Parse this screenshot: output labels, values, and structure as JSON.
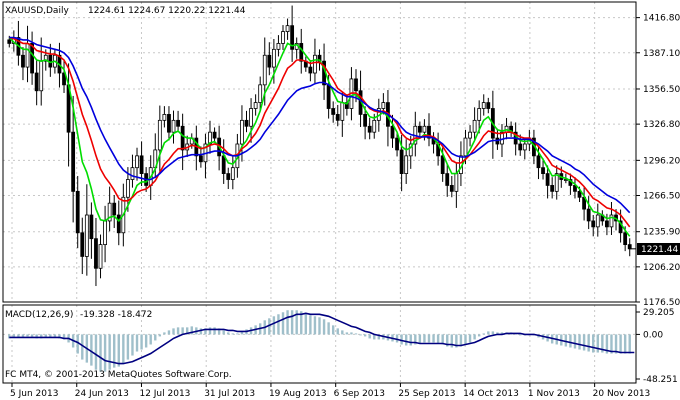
{
  "header": {
    "symbol_label": "XAUUSD,Daily",
    "ohlc": "1224.61 1224.67 1220.22 1221.44"
  },
  "macd_header": {
    "label": "MACD(12,26,9)",
    "values": "-19.328 -18.472"
  },
  "copyright": "FC MT4, © 2001-2013 MetaQuotes Software Corp.",
  "colors": {
    "background": "#ffffff",
    "axis": "#000000",
    "grid": "#c8c8c8",
    "candle": "#000000",
    "ma_fast": "#00dd00",
    "ma_mid": "#ee0000",
    "ma_slow": "#0000dd",
    "macd_hist": "#9fbfca",
    "macd_signal": "#000080",
    "current_price_box": "#000000"
  },
  "chart_data": [
    {
      "type": "candlestick",
      "title": "XAUUSD,Daily",
      "x_tick_labels": [
        "5 Jun 2013",
        "24 Jun 2013",
        "12 Jul 2013",
        "31 Jul 2013",
        "19 Aug 2013",
        "6 Sep 2013",
        "25 Sep 2013",
        "14 Oct 2013",
        "1 Nov 2013",
        "20 Nov 2013"
      ],
      "y_tick_labels": [
        "1416.80",
        "1387.10",
        "1356.50",
        "1326.80",
        "1296.20",
        "1266.50",
        "1235.90",
        "1206.20",
        "1176.50"
      ],
      "ylim": [
        1176.5,
        1430
      ],
      "current_price": "1221.44",
      "close": [
        1395,
        1400,
        1385,
        1375,
        1395,
        1370,
        1355,
        1380,
        1385,
        1375,
        1385,
        1370,
        1360,
        1320,
        1270,
        1235,
        1215,
        1250,
        1230,
        1205,
        1225,
        1245,
        1260,
        1250,
        1235,
        1265,
        1280,
        1290,
        1300,
        1285,
        1275,
        1290,
        1305,
        1330,
        1335,
        1320,
        1330,
        1325,
        1305,
        1310,
        1315,
        1300,
        1295,
        1310,
        1320,
        1315,
        1300,
        1285,
        1280,
        1290,
        1310,
        1330,
        1325,
        1340,
        1345,
        1360,
        1385,
        1375,
        1390,
        1395,
        1405,
        1410,
        1390,
        1395,
        1380,
        1375,
        1370,
        1385,
        1380,
        1360,
        1340,
        1335,
        1330,
        1345,
        1340,
        1365,
        1355,
        1335,
        1325,
        1320,
        1330,
        1340,
        1345,
        1325,
        1315,
        1305,
        1285,
        1300,
        1310,
        1325,
        1320,
        1325,
        1315,
        1310,
        1300,
        1285,
        1275,
        1270,
        1285,
        1300,
        1315,
        1320,
        1330,
        1340,
        1345,
        1340,
        1315,
        1310,
        1320,
        1325,
        1320,
        1310,
        1305,
        1310,
        1315,
        1300,
        1290,
        1285,
        1275,
        1270,
        1285,
        1280,
        1280,
        1275,
        1270,
        1265,
        1255,
        1245,
        1240,
        1250,
        1245,
        1240,
        1250,
        1245,
        1235,
        1225,
        1221.44
      ],
      "series": [
        {
          "name": "",
          "values": [
            1400,
            1396,
            1393,
            1390,
            1390,
            1386,
            1381,
            1380,
            1381,
            1379,
            1380,
            1377,
            1373,
            1360,
            1341,
            1318,
            1295,
            1286,
            1272,
            1255,
            1246,
            1245,
            1248,
            1249,
            1245,
            1250,
            1258,
            1266,
            1275,
            1278,
            1278,
            1282,
            1289,
            1301,
            1311,
            1314,
            1319,
            1321,
            1317,
            1315,
            1315,
            1311,
            1306,
            1307,
            1311,
            1312,
            1308,
            1301,
            1294,
            1293,
            1298,
            1308,
            1313,
            1321,
            1328,
            1338,
            1353,
            1360,
            1369,
            1378,
            1387,
            1395,
            1393,
            1394,
            1390,
            1385,
            1380,
            1381,
            1381,
            1374,
            1363,
            1354,
            1346,
            1345,
            1344,
            1351,
            1352,
            1347,
            1339,
            1333,
            1332,
            1334,
            1337,
            1333,
            1327,
            1320,
            1308,
            1305,
            1307,
            1313,
            1315,
            1318,
            1317,
            1315,
            1310,
            1302,
            1293,
            1285,
            1285,
            1290,
            1298,
            1305,
            1313,
            1322,
            1330,
            1333,
            1327,
            1322,
            1321,
            1322,
            1321,
            1317,
            1313,
            1312,
            1313,
            1309,
            1303,
            1297,
            1290,
            1283,
            1284,
            1282,
            1281,
            1279,
            1276,
            1272,
            1266,
            1259,
            1253,
            1252,
            1250,
            1247,
            1248,
            1247,
            1243,
            1237,
            1232
          ]
        },
        {
          "name": "",
          "values": [
            1400,
            1399,
            1397,
            1395,
            1395,
            1393,
            1389,
            1388,
            1387,
            1386,
            1386,
            1384,
            1381,
            1374,
            1363,
            1349,
            1335,
            1325,
            1313,
            1300,
            1289,
            1282,
            1277,
            1271,
            1264,
            1262,
            1262,
            1265,
            1269,
            1271,
            1272,
            1275,
            1279,
            1286,
            1293,
            1297,
            1302,
            1306,
            1306,
            1307,
            1309,
            1308,
            1306,
            1307,
            1309,
            1310,
            1309,
            1306,
            1302,
            1300,
            1301,
            1306,
            1309,
            1314,
            1319,
            1326,
            1336,
            1343,
            1350,
            1357,
            1366,
            1374,
            1377,
            1381,
            1381,
            1380,
            1378,
            1379,
            1379,
            1376,
            1370,
            1364,
            1357,
            1354,
            1351,
            1353,
            1353,
            1350,
            1345,
            1340,
            1338,
            1337,
            1338,
            1336,
            1332,
            1327,
            1319,
            1315,
            1313,
            1315,
            1315,
            1317,
            1317,
            1316,
            1313,
            1308,
            1302,
            1296,
            1294,
            1294,
            1297,
            1301,
            1306,
            1311,
            1317,
            1321,
            1320,
            1319,
            1319,
            1320,
            1320,
            1318,
            1316,
            1315,
            1315,
            1312,
            1308,
            1303,
            1298,
            1292,
            1290,
            1288,
            1286,
            1284,
            1281,
            1278,
            1274,
            1269,
            1264,
            1262,
            1259,
            1256,
            1255,
            1253,
            1250,
            1245,
            1240
          ]
        },
        {
          "name": "",
          "values": [
            1400,
            1400,
            1399,
            1398,
            1398,
            1396,
            1394,
            1393,
            1392,
            1391,
            1390,
            1389,
            1387,
            1383,
            1376,
            1367,
            1357,
            1350,
            1341,
            1331,
            1322,
            1314,
            1307,
            1300,
            1293,
            1288,
            1285,
            1283,
            1282,
            1281,
            1280,
            1280,
            1282,
            1285,
            1289,
            1292,
            1295,
            1298,
            1299,
            1300,
            1301,
            1301,
            1301,
            1302,
            1303,
            1304,
            1304,
            1303,
            1301,
            1300,
            1300,
            1302,
            1304,
            1307,
            1310,
            1314,
            1320,
            1325,
            1330,
            1335,
            1341,
            1347,
            1351,
            1355,
            1357,
            1358,
            1359,
            1361,
            1362,
            1362,
            1360,
            1357,
            1354,
            1352,
            1350,
            1350,
            1349,
            1347,
            1344,
            1341,
            1339,
            1338,
            1337,
            1335,
            1332,
            1329,
            1324,
            1320,
            1318,
            1317,
            1316,
            1316,
            1316,
            1315,
            1313,
            1310,
            1306,
            1302,
            1300,
            1299,
            1299,
            1301,
            1303,
            1306,
            1309,
            1312,
            1313,
            1313,
            1314,
            1315,
            1315,
            1315,
            1314,
            1314,
            1314,
            1312,
            1310,
            1307,
            1304,
            1300,
            1298,
            1296,
            1294,
            1292,
            1289,
            1287,
            1284,
            1280,
            1276,
            1273,
            1270,
            1267,
            1265,
            1263,
            1260,
            1256,
            1252
          ]
        }
      ]
    },
    {
      "type": "bar",
      "title": "MACD(12,26,9)",
      "y_tick_labels": [
        "29.205",
        "0.00",
        "-48.251"
      ],
      "ylim": [
        -48.251,
        29.205
      ],
      "series": [
        {
          "name": "",
          "values": [
            -4,
            -3,
            -3,
            -3,
            -2,
            -3,
            -4,
            -4,
            -3,
            -3,
            -3,
            -4,
            -5,
            -8,
            -13,
            -19,
            -25,
            -28,
            -31,
            -35,
            -37,
            -37,
            -35,
            -33,
            -32,
            -29,
            -25,
            -21,
            -17,
            -15,
            -13,
            -10,
            -6,
            -2,
            2,
            4,
            6,
            7,
            7,
            7,
            8,
            7,
            6,
            6,
            7,
            7,
            6,
            4,
            2,
            1,
            1,
            3,
            5,
            7,
            9,
            11,
            14,
            16,
            18,
            20,
            22,
            24,
            24,
            24,
            23,
            21,
            19,
            18,
            17,
            15,
            12,
            9,
            6,
            4,
            2,
            2,
            1,
            0,
            -2,
            -4,
            -5,
            -5,
            -5,
            -6,
            -7,
            -8,
            -10,
            -11,
            -11,
            -10,
            -9,
            -8,
            -8,
            -8,
            -9,
            -10,
            -12,
            -13,
            -13,
            -12,
            -10,
            -8,
            -5,
            -2,
            1,
            3,
            3,
            2,
            2,
            2,
            2,
            1,
            0,
            0,
            0,
            -1,
            -3,
            -5,
            -7,
            -9,
            -10,
            -11,
            -12,
            -13,
            -14,
            -15,
            -16,
            -17,
            -18,
            -18,
            -18,
            -19,
            -19,
            -19,
            -19,
            -19,
            -19
          ]
        },
        {
          "name": "",
          "values": [
            -3,
            -3,
            -3,
            -3,
            -3,
            -3,
            -3,
            -3,
            -3,
            -3,
            -3,
            -3,
            -4,
            -4,
            -6,
            -8,
            -11,
            -14,
            -17,
            -20,
            -23,
            -26,
            -27,
            -28,
            -29,
            -29,
            -28,
            -27,
            -25,
            -23,
            -21,
            -19,
            -16,
            -13,
            -10,
            -7,
            -4,
            -2,
            0,
            1,
            2,
            3,
            4,
            5,
            5,
            5,
            5,
            5,
            4,
            4,
            3,
            3,
            3,
            4,
            5,
            6,
            7,
            9,
            11,
            13,
            15,
            17,
            18,
            20,
            20,
            21,
            20,
            20,
            20,
            19,
            18,
            16,
            14,
            12,
            10,
            8,
            7,
            5,
            3,
            2,
            0,
            -1,
            -2,
            -3,
            -4,
            -5,
            -6,
            -7,
            -8,
            -8,
            -9,
            -9,
            -9,
            -9,
            -9,
            -9,
            -10,
            -10,
            -11,
            -11,
            -10,
            -9,
            -8,
            -6,
            -4,
            -2,
            -1,
            0,
            0,
            1,
            1,
            1,
            1,
            0,
            0,
            0,
            -1,
            -2,
            -3,
            -4,
            -5,
            -6,
            -7,
            -8,
            -9,
            -10,
            -11,
            -12,
            -13,
            -14,
            -15,
            -16,
            -17,
            -17,
            -18,
            -18,
            -18,
            -18
          ]
        }
      ]
    }
  ]
}
